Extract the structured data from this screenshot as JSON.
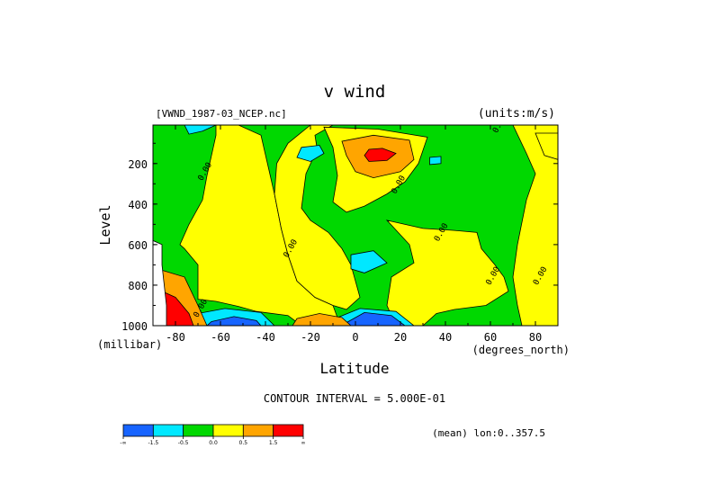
{
  "chart_data": {
    "type": "heatmap",
    "title": "v wind",
    "dataset_label": "[VWND_1987-03_NCEP.nc]",
    "units_label": "(units:m/s)",
    "xlabel": "Latitude",
    "xunits": "(degrees_north)",
    "ylabel": "Level",
    "yunits": "(millibar)",
    "xlim": [
      -90,
      90
    ],
    "ylim": [
      1000,
      10
    ],
    "x_ticks": [
      {
        "value": -80,
        "label": "-80"
      },
      {
        "value": -60,
        "label": "-60"
      },
      {
        "value": -40,
        "label": "-40"
      },
      {
        "value": -20,
        "label": "-20"
      },
      {
        "value": 0,
        "label": "0"
      },
      {
        "value": 20,
        "label": "20"
      },
      {
        "value": 40,
        "label": "40"
      },
      {
        "value": 60,
        "label": "60"
      },
      {
        "value": 80,
        "label": "80"
      }
    ],
    "y_ticks": [
      {
        "value": 200,
        "label": "200"
      },
      {
        "value": 400,
        "label": "400"
      },
      {
        "value": 600,
        "label": "600"
      },
      {
        "value": 800,
        "label": "800"
      },
      {
        "value": 1000,
        "label": "1000"
      }
    ],
    "contour_interval_label": "CONTOUR INTERVAL = 5.000E-01",
    "mean_label": "(mean) lon:0..357.5",
    "contour_labels": [
      {
        "text": "0.00",
        "lat": 65,
        "level": 10
      },
      {
        "text": "0.00",
        "lat": -66,
        "level": 245
      },
      {
        "text": "0.00",
        "lat": 20,
        "level": 310
      },
      {
        "text": "0.00",
        "lat": -28,
        "level": 625
      },
      {
        "text": "0.00",
        "lat": 39,
        "level": 545
      },
      {
        "text": "0.00",
        "lat": 62,
        "level": 760
      },
      {
        "text": "0.00",
        "lat": 83,
        "level": 760
      },
      {
        "text": "0.00",
        "lat": -68,
        "level": 920
      }
    ],
    "color_levels": [
      {
        "label": "-∞",
        "range": [
          null,
          -1.5
        ],
        "color": "#1764ff"
      },
      {
        "label": "-1.5",
        "range": [
          -1.5,
          -0.5
        ],
        "color": "#00e8ff"
      },
      {
        "label": "-0.5",
        "range": [
          -0.5,
          0.0
        ],
        "color": "#00d800"
      },
      {
        "label": "0.0",
        "range": [
          0.0,
          0.5
        ],
        "color": "#ffff00"
      },
      {
        "label": "0.5",
        "range": [
          0.5,
          1.5
        ],
        "color": "#ffa500"
      },
      {
        "label": "1.5",
        "range": [
          1.5,
          null
        ],
        "color": "#ff0000"
      },
      {
        "label": "∞",
        "range": null,
        "color": null
      }
    ],
    "regions": [
      {
        "category": "yellow",
        "polygon": [
          [
            -62,
            10
          ],
          [
            -52,
            10
          ],
          [
            -42,
            60
          ],
          [
            -36,
            350
          ],
          [
            -33,
            520
          ],
          [
            -30,
            650
          ],
          [
            -26,
            780
          ],
          [
            -18,
            860
          ],
          [
            -10,
            900
          ],
          [
            -8,
            960
          ],
          [
            -12,
            1000
          ],
          [
            -24,
            1000
          ],
          [
            -30,
            950
          ],
          [
            -44,
            930
          ],
          [
            -52,
            905
          ],
          [
            -62,
            880
          ],
          [
            -70,
            870
          ],
          [
            -70,
            700
          ],
          [
            -76,
            620
          ],
          [
            -78,
            600
          ],
          [
            -74,
            500
          ],
          [
            -68,
            380
          ],
          [
            -66,
            260
          ],
          [
            -62,
            60
          ]
        ]
      },
      {
        "category": "yellow",
        "polygon": [
          [
            -20,
            10
          ],
          [
            -10,
            10
          ],
          [
            -18,
            60
          ],
          [
            -17,
            130
          ],
          [
            -22,
            250
          ],
          [
            -24,
            420
          ],
          [
            -20,
            480
          ],
          [
            -12,
            540
          ],
          [
            -6,
            620
          ],
          [
            -2,
            700
          ],
          [
            0,
            780
          ],
          [
            2,
            860
          ],
          [
            -4,
            920
          ],
          [
            -10,
            900
          ],
          [
            -18,
            860
          ],
          [
            -26,
            780
          ],
          [
            -30,
            650
          ],
          [
            -33,
            520
          ],
          [
            -36,
            350
          ],
          [
            -35,
            200
          ],
          [
            -30,
            100
          ]
        ]
      },
      {
        "category": "yellow",
        "polygon": [
          [
            -14,
            20
          ],
          [
            10,
            30
          ],
          [
            32,
            70
          ],
          [
            28,
            200
          ],
          [
            22,
            290
          ],
          [
            14,
            350
          ],
          [
            4,
            410
          ],
          [
            -4,
            440
          ],
          [
            -10,
            390
          ],
          [
            -8,
            260
          ],
          [
            -10,
            120
          ]
        ]
      },
      {
        "category": "yellow",
        "polygon": [
          [
            14,
            480
          ],
          [
            30,
            520
          ],
          [
            44,
            530
          ],
          [
            54,
            540
          ],
          [
            56,
            620
          ],
          [
            62,
            700
          ],
          [
            66,
            760
          ],
          [
            68,
            830
          ],
          [
            58,
            900
          ],
          [
            44,
            920
          ],
          [
            36,
            940
          ],
          [
            30,
            1000
          ],
          [
            18,
            1000
          ],
          [
            14,
            900
          ],
          [
            16,
            760
          ],
          [
            26,
            690
          ],
          [
            24,
            600
          ]
        ]
      },
      {
        "category": "yellow",
        "polygon": [
          [
            70,
            10
          ],
          [
            90,
            10
          ],
          [
            90,
            1000
          ],
          [
            74,
            1000
          ],
          [
            72,
            900
          ],
          [
            70,
            760
          ],
          [
            72,
            600
          ],
          [
            76,
            380
          ],
          [
            80,
            250
          ],
          [
            76,
            150
          ]
        ]
      },
      {
        "category": "yellow",
        "polygon": [
          [
            80,
            50
          ],
          [
            90,
            50
          ],
          [
            90,
            180
          ],
          [
            84,
            160
          ]
        ]
      },
      {
        "category": "cyan",
        "polygon": [
          [
            -76,
            10
          ],
          [
            -62,
            10
          ],
          [
            -68,
            40
          ],
          [
            -74,
            55
          ]
        ]
      },
      {
        "category": "cyan",
        "polygon": [
          [
            -24,
            120
          ],
          [
            -16,
            110
          ],
          [
            -14,
            150
          ],
          [
            -20,
            190
          ],
          [
            -26,
            170
          ]
        ]
      },
      {
        "category": "cyan",
        "polygon": [
          [
            33,
            170
          ],
          [
            38,
            165
          ],
          [
            38,
            200
          ],
          [
            33,
            205
          ]
        ]
      },
      {
        "category": "cyan",
        "polygon": [
          [
            -2,
            650
          ],
          [
            8,
            630
          ],
          [
            14,
            690
          ],
          [
            4,
            740
          ],
          [
            -2,
            720
          ]
        ]
      },
      {
        "category": "cyan",
        "polygon": [
          [
            -70,
            940
          ],
          [
            -58,
            915
          ],
          [
            -42,
            935
          ],
          [
            -36,
            1000
          ],
          [
            -72,
            1000
          ]
        ]
      },
      {
        "category": "cyan",
        "polygon": [
          [
            -8,
            960
          ],
          [
            2,
            915
          ],
          [
            18,
            930
          ],
          [
            26,
            1000
          ],
          [
            -10,
            1000
          ]
        ]
      },
      {
        "category": "blue",
        "polygon": [
          [
            -64,
            980
          ],
          [
            -54,
            955
          ],
          [
            -44,
            975
          ],
          [
            -42,
            1000
          ],
          [
            -66,
            1000
          ]
        ]
      },
      {
        "category": "blue",
        "polygon": [
          [
            -4,
            985
          ],
          [
            4,
            935
          ],
          [
            16,
            950
          ],
          [
            22,
            1000
          ],
          [
            -6,
            1000
          ]
        ]
      },
      {
        "category": "orange",
        "polygon": [
          [
            -6,
            90
          ],
          [
            8,
            60
          ],
          [
            24,
            85
          ],
          [
            26,
            180
          ],
          [
            20,
            240
          ],
          [
            8,
            270
          ],
          [
            0,
            240
          ],
          [
            -4,
            160
          ]
        ]
      },
      {
        "category": "orange",
        "polygon": [
          [
            -88,
            720
          ],
          [
            -76,
            760
          ],
          [
            -70,
            900
          ],
          [
            -66,
            1000
          ],
          [
            -86,
            1000
          ],
          [
            -90,
            900
          ]
        ]
      },
      {
        "category": "orange",
        "polygon": [
          [
            -28,
            1000
          ],
          [
            -26,
            965
          ],
          [
            -16,
            940
          ],
          [
            -6,
            960
          ],
          [
            -2,
            1000
          ]
        ]
      },
      {
        "category": "red",
        "polygon": [
          [
            6,
            130
          ],
          [
            12,
            125
          ],
          [
            18,
            150
          ],
          [
            14,
            185
          ],
          [
            6,
            190
          ],
          [
            4,
            160
          ]
        ]
      },
      {
        "category": "red",
        "polygon": [
          [
            -88,
            820
          ],
          [
            -80,
            860
          ],
          [
            -74,
            940
          ],
          [
            -72,
            1000
          ],
          [
            -88,
            1000
          ]
        ]
      },
      {
        "category": "white",
        "polygon": [
          [
            -90,
            580
          ],
          [
            -86,
            600
          ],
          [
            -86,
            700
          ],
          [
            -84,
            900
          ],
          [
            -84,
            1000
          ],
          [
            -90,
            1000
          ]
        ]
      }
    ]
  }
}
